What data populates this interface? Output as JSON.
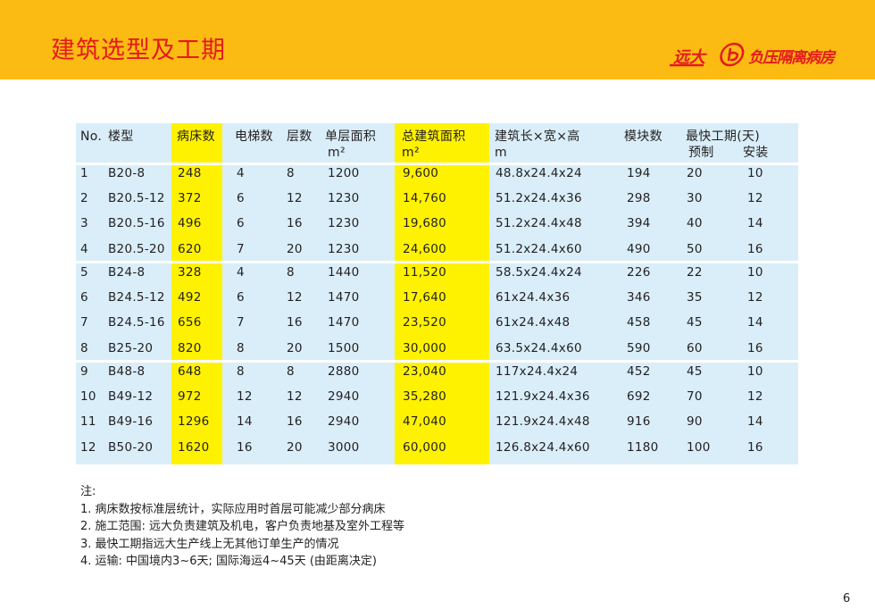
{
  "header": {
    "title": "建筑选型及工期",
    "logo_brand": "远大",
    "logo_text": "负压隔离病房",
    "brand_color": "#e31a1c",
    "band_color": "#fbbb12"
  },
  "table": {
    "highlight_color": "#fff200",
    "background_color": "#d9eef9",
    "headers": {
      "no": "No.",
      "model": "楼型",
      "beds": "病床数",
      "elevators": "电梯数",
      "floors": "层数",
      "floor_area": "单层面积",
      "floor_area_unit": "m²",
      "total_area": "总建筑面积",
      "total_area_unit": "m²",
      "dims": "建筑长×宽×高",
      "dims_unit": "m",
      "modules": "模块数",
      "schedule": "最快工期(天)",
      "prefab": "预制",
      "install": "安装"
    },
    "rows": [
      [
        "1",
        "B20-8",
        "248",
        "4",
        "8",
        "1200",
        "9,600",
        "48.8x24.4x24",
        "194",
        "20",
        "10"
      ],
      [
        "2",
        "B20.5-12",
        "372",
        "6",
        "12",
        "1230",
        "14,760",
        "51.2x24.4x36",
        "298",
        "30",
        "12"
      ],
      [
        "3",
        "B20.5-16",
        "496",
        "6",
        "16",
        "1230",
        "19,680",
        "51.2x24.4x48",
        "394",
        "40",
        "14"
      ],
      [
        "4",
        "B20.5-20",
        "620",
        "7",
        "20",
        "1230",
        "24,600",
        "51.2x24.4x60",
        "490",
        "50",
        "16"
      ],
      [
        "5",
        "B24-8",
        "328",
        "4",
        "8",
        "1440",
        "11,520",
        "58.5x24.4x24",
        "226",
        "22",
        "10"
      ],
      [
        "6",
        "B24.5-12",
        "492",
        "6",
        "12",
        "1470",
        "17,640",
        "61x24.4x36",
        "346",
        "35",
        "12"
      ],
      [
        "7",
        "B24.5-16",
        "656",
        "7",
        "16",
        "1470",
        "23,520",
        "61x24.4x48",
        "458",
        "45",
        "14"
      ],
      [
        "8",
        "B25-20",
        "820",
        "8",
        "20",
        "1500",
        "30,000",
        "63.5x24.4x60",
        "590",
        "60",
        "16"
      ],
      [
        "9",
        "B48-8",
        "648",
        "8",
        "8",
        "2880",
        "23,040",
        "117x24.4x24",
        "452",
        "45",
        "10"
      ],
      [
        "10",
        "B49-12",
        "972",
        "12",
        "12",
        "2940",
        "35,280",
        "121.9x24.4x36",
        "692",
        "70",
        "12"
      ],
      [
        "11",
        "B49-16",
        "1296",
        "14",
        "16",
        "2940",
        "47,040",
        "121.9x24.4x48",
        "916",
        "90",
        "14"
      ],
      [
        "12",
        "B50-20",
        "1620",
        "16",
        "20",
        "3000",
        "60,000",
        "126.8x24.4x60",
        "1180",
        "100",
        "16"
      ]
    ]
  },
  "notes": {
    "title": "注:",
    "items": [
      "1. 病床数按标准层统计，实际应用时首层可能减少部分病床",
      "2. 施工范围: 远大负责建筑及机电，客户负责地基及室外工程等",
      "3. 最快工期指远大生产线上无其他订单生产的情况",
      "4. 运输: 中国境内3~6天; 国际海运4~45天 (由距离决定)"
    ]
  },
  "page_number": "6"
}
